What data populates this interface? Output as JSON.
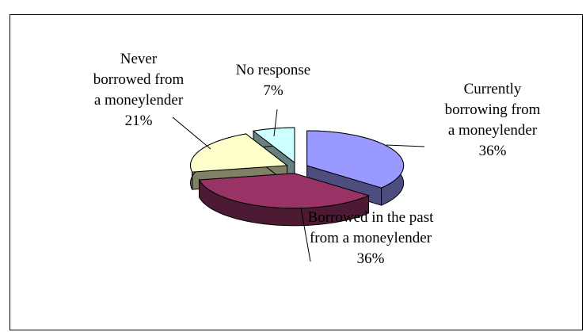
{
  "chart_data": {
    "type": "pie3d",
    "categories": [
      "Currently borrowing from a moneylender",
      "Borrowed in the past from a moneylender",
      "Never borrowed from a moneylender",
      "No response"
    ],
    "values": [
      36,
      36,
      21,
      7
    ],
    "value_labels": [
      "36%",
      "36%",
      "21%",
      "7%"
    ],
    "colors": [
      "#9999ff",
      "#993366",
      "#ffffcc",
      "#ccffff"
    ]
  }
}
